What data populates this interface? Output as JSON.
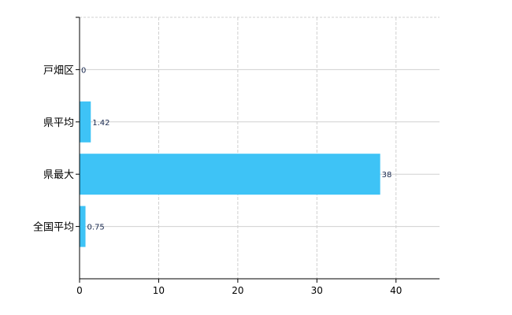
{
  "chart_data": {
    "type": "bar",
    "orientation": "horizontal",
    "categories": [
      "戸畑区",
      "県平均",
      "県最大",
      "全国平均"
    ],
    "values": [
      0,
      1.42,
      38,
      0.75
    ],
    "data_labels": [
      "0",
      "1.42",
      "38",
      "0.75"
    ],
    "xlim": [
      0,
      45.5
    ],
    "xticks": [
      0,
      10,
      20,
      30,
      40
    ],
    "xtick_labels": [
      "0",
      "10",
      "20",
      "30",
      "40"
    ],
    "grid": true,
    "bar_color": "#3ec3f6",
    "grid_color": "#d0d0d0"
  }
}
